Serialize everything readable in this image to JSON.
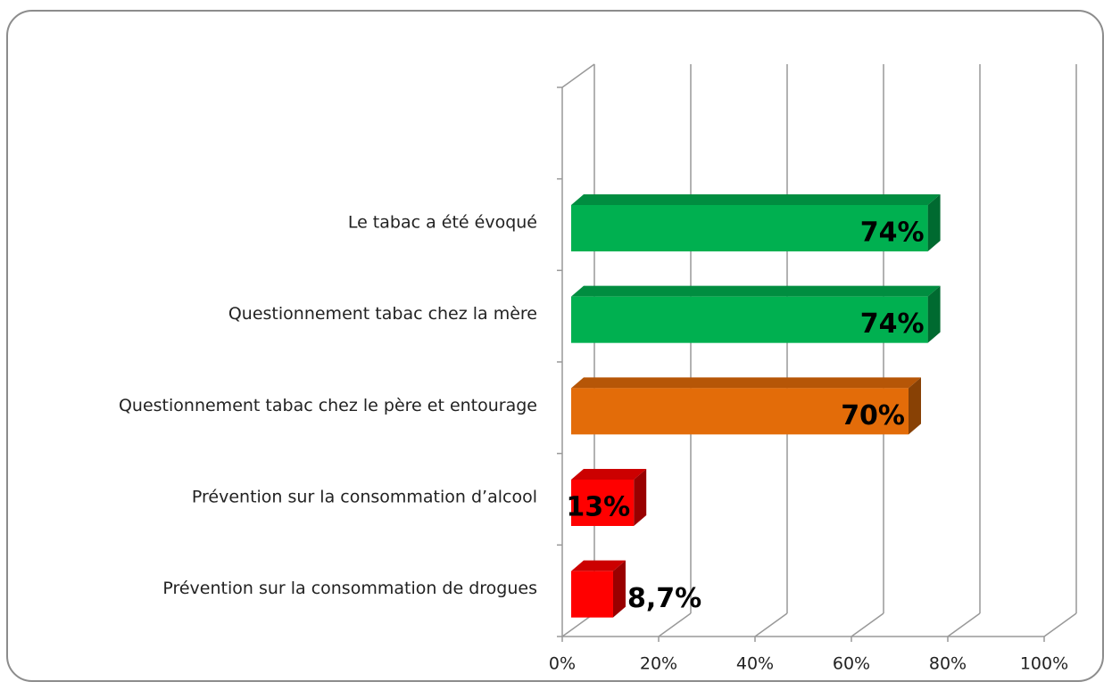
{
  "chart_data": {
    "type": "bar3d_horizontal",
    "categories": [
      "Le tabac a été évoqué",
      "Questionnement tabac chez la mère",
      "Questionnement tabac chez le père et entourage",
      "Prévention sur la consommation d’alcool",
      "Prévention sur la consommation de drogues"
    ],
    "values": [
      74,
      74,
      70,
      13,
      8.7
    ],
    "value_labels": [
      "74%",
      "74%",
      "70%",
      "13%",
      "8,7%"
    ],
    "colors": [
      "#00b050",
      "#00b050",
      "#e36c09",
      "#ff0000",
      "#ff0000"
    ],
    "xlim": [
      0,
      100
    ],
    "xticks": [
      {
        "value": 0,
        "label": "0%"
      },
      {
        "value": 20,
        "label": "20%"
      },
      {
        "value": 40,
        "label": "40%"
      },
      {
        "value": 60,
        "label": "60%"
      },
      {
        "value": 80,
        "label": "80%"
      },
      {
        "value": 100,
        "label": "100%"
      }
    ],
    "grid": true
  }
}
